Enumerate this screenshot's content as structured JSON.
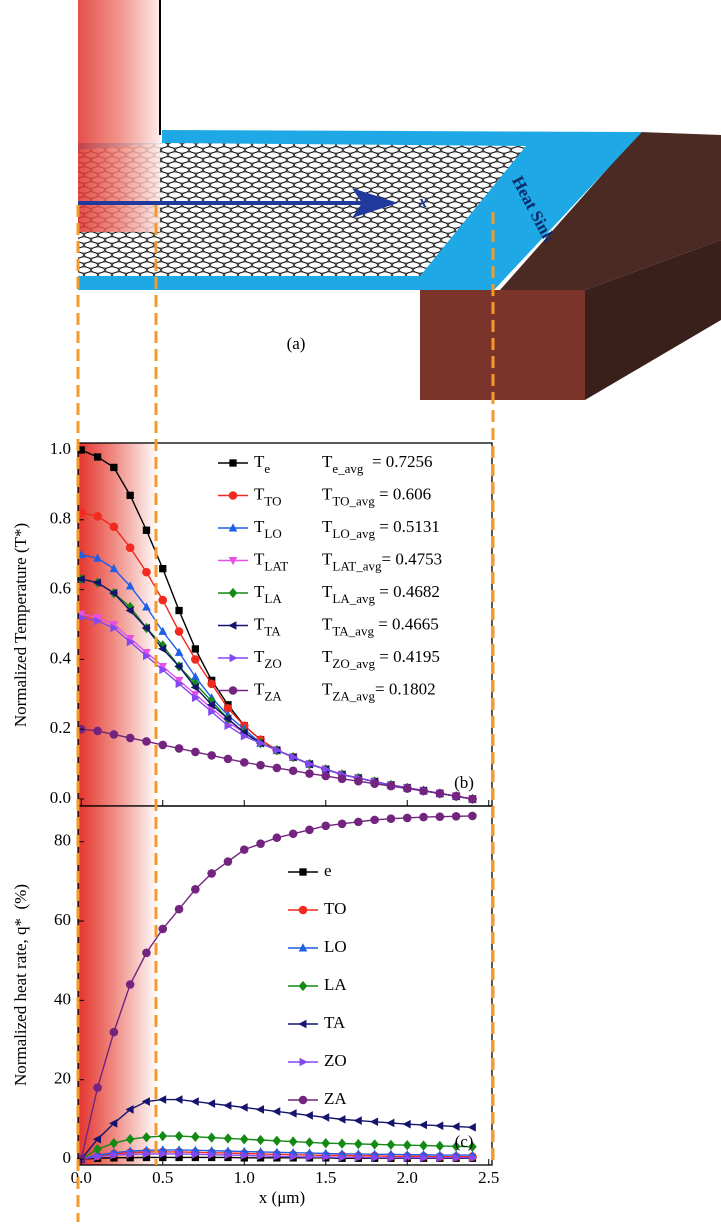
{
  "schematic": {
    "label": "(a)",
    "heat_sink": "Heat Sink",
    "axis": "x"
  },
  "chart_data": [
    {
      "type": "line",
      "ylabel": "Normalized Temperature (T*)",
      "panel_label": "(b)",
      "xlim": [
        -0.02,
        2.52
      ],
      "xticks": [
        0,
        0.5,
        1,
        1.5,
        2,
        2.5
      ],
      "ylim": [
        -0.02,
        1.02
      ],
      "yticks": [
        {
          "value": 0,
          "label": "0.0"
        },
        {
          "value": 0.2,
          "label": "0.2"
        },
        {
          "value": 0.4,
          "label": "0.4"
        },
        {
          "value": 0.6,
          "label": "0.6"
        },
        {
          "value": 0.8,
          "label": "0.8"
        },
        {
          "value": 1,
          "label": "1.0"
        }
      ],
      "x": [
        0,
        0.1,
        0.2,
        0.3,
        0.4,
        0.5,
        0.6,
        0.7,
        0.8,
        0.9,
        1.0,
        1.1,
        1.2,
        1.3,
        1.4,
        1.5,
        1.6,
        1.7,
        1.8,
        1.9,
        2.0,
        2.1,
        2.2,
        2.3,
        2.4
      ],
      "legend_subscript": true,
      "series": [
        {
          "name": "Te",
          "color": "#000000",
          "marker": "square",
          "values": [
            1.0,
            0.98,
            0.95,
            0.87,
            0.77,
            0.66,
            0.54,
            0.43,
            0.34,
            0.27,
            0.21,
            0.17,
            0.14,
            0.12,
            0.1,
            0.085,
            0.07,
            0.06,
            0.05,
            0.04,
            0.032,
            0.024,
            0.016,
            0.008,
            0
          ]
        },
        {
          "name": "TTO",
          "color": "#f02a1e",
          "marker": "circle",
          "values": [
            0.82,
            0.81,
            0.78,
            0.72,
            0.65,
            0.57,
            0.48,
            0.4,
            0.33,
            0.26,
            0.21,
            0.17,
            0.14,
            0.12,
            0.1,
            0.085,
            0.07,
            0.06,
            0.05,
            0.04,
            0.032,
            0.024,
            0.016,
            0.008,
            0
          ]
        },
        {
          "name": "TLO",
          "color": "#1f5ee6",
          "marker": "triangle-up",
          "values": [
            0.7,
            0.69,
            0.66,
            0.61,
            0.55,
            0.48,
            0.42,
            0.35,
            0.29,
            0.24,
            0.2,
            0.16,
            0.14,
            0.12,
            0.1,
            0.085,
            0.07,
            0.06,
            0.05,
            0.04,
            0.032,
            0.024,
            0.016,
            0.008,
            0
          ]
        },
        {
          "name": "TLAT",
          "color": "#e650e6",
          "marker": "triangle-down",
          "values": [
            0.53,
            0.52,
            0.5,
            0.46,
            0.42,
            0.38,
            0.34,
            0.3,
            0.26,
            0.22,
            0.19,
            0.16,
            0.14,
            0.12,
            0.1,
            0.085,
            0.07,
            0.06,
            0.05,
            0.04,
            0.032,
            0.024,
            0.016,
            0.008,
            0
          ]
        },
        {
          "name": "TLA",
          "color": "#138a13",
          "marker": "diamond",
          "values": [
            0.63,
            0.62,
            0.59,
            0.55,
            0.49,
            0.44,
            0.38,
            0.33,
            0.28,
            0.23,
            0.19,
            0.16,
            0.14,
            0.12,
            0.1,
            0.085,
            0.07,
            0.06,
            0.05,
            0.04,
            0.032,
            0.024,
            0.016,
            0.008,
            0
          ]
        },
        {
          "name": "TTA",
          "color": "#14146e",
          "marker": "triangle-left",
          "values": [
            0.63,
            0.62,
            0.59,
            0.54,
            0.49,
            0.43,
            0.38,
            0.32,
            0.27,
            0.23,
            0.19,
            0.16,
            0.14,
            0.12,
            0.1,
            0.085,
            0.07,
            0.06,
            0.05,
            0.04,
            0.032,
            0.024,
            0.016,
            0.008,
            0
          ]
        },
        {
          "name": "TZO",
          "color": "#8448f0",
          "marker": "triangle-right",
          "values": [
            0.52,
            0.51,
            0.49,
            0.45,
            0.41,
            0.37,
            0.33,
            0.29,
            0.25,
            0.21,
            0.18,
            0.16,
            0.14,
            0.12,
            0.1,
            0.085,
            0.07,
            0.06,
            0.05,
            0.04,
            0.032,
            0.024,
            0.016,
            0.008,
            0
          ]
        },
        {
          "name": "TZA",
          "color": "#72247e",
          "marker": "circle",
          "values": [
            0.2,
            0.195,
            0.185,
            0.175,
            0.165,
            0.155,
            0.145,
            0.135,
            0.125,
            0.115,
            0.105,
            0.097,
            0.089,
            0.081,
            0.073,
            0.066,
            0.058,
            0.051,
            0.044,
            0.037,
            0.03,
            0.023,
            0.016,
            0.008,
            0
          ]
        }
      ],
      "annotations": [
        "Te_avg  = 0.7256",
        "TTO_avg = 0.606",
        "TLO_avg = 0.5131",
        "TLAT_avg= 0.4753",
        "TLA_avg = 0.4682",
        "TTA_avg = 0.4665",
        "TZO_avg = 0.4195",
        "TZA_avg= 0.1802"
      ]
    },
    {
      "type": "line",
      "ylabel": "Normalized heat rate, q*  (%)",
      "xlabel": "x (μm)",
      "panel_label": "(c)",
      "xlim": [
        -0.02,
        2.52
      ],
      "xticks": [
        {
          "value": 0,
          "label": "0.0"
        },
        {
          "value": 0.5,
          "label": "0.5"
        },
        {
          "value": 1,
          "label": "1.0"
        },
        {
          "value": 1.5,
          "label": "1.5"
        },
        {
          "value": 2,
          "label": "2.0"
        },
        {
          "value": 2.5,
          "label": "2.5"
        }
      ],
      "ylim": [
        -1.5,
        89
      ],
      "yticks": [
        0,
        20,
        40,
        60,
        80
      ],
      "x": [
        0,
        0.1,
        0.2,
        0.3,
        0.4,
        0.5,
        0.6,
        0.7,
        0.8,
        0.9,
        1.0,
        1.1,
        1.2,
        1.3,
        1.4,
        1.5,
        1.6,
        1.7,
        1.8,
        1.9,
        2.0,
        2.1,
        2.2,
        2.3,
        2.4
      ],
      "legend_subscript": false,
      "series": [
        {
          "name": "e",
          "color": "#000000",
          "marker": "square",
          "values": [
            0,
            0.2,
            0.3,
            0.35,
            0.4,
            0.4,
            0.4,
            0.4,
            0.4,
            0.4,
            0.3,
            0.3,
            0.3,
            0.3,
            0.3,
            0.3,
            0.2,
            0.2,
            0.2,
            0.2,
            0.2,
            0.2,
            0.2,
            0.2,
            0.2
          ]
        },
        {
          "name": "TO",
          "color": "#f02a1e",
          "marker": "circle",
          "values": [
            0,
            0.8,
            1.3,
            1.6,
            1.8,
            1.8,
            1.8,
            1.7,
            1.6,
            1.5,
            1.4,
            1.3,
            1.2,
            1.1,
            1.0,
            0.9,
            0.9,
            0.8,
            0.8,
            0.7,
            0.7,
            0.7,
            0.6,
            0.6,
            0.6
          ]
        },
        {
          "name": "LO",
          "color": "#1f5ee6",
          "marker": "triangle-up",
          "values": [
            0,
            1,
            1.6,
            2,
            2.2,
            2.3,
            2.3,
            2.2,
            2.1,
            2.0,
            1.9,
            1.8,
            1.7,
            1.6,
            1.5,
            1.4,
            1.3,
            1.3,
            1.2,
            1.2,
            1.1,
            1.1,
            1.0,
            1.0,
            1.0
          ]
        },
        {
          "name": "LA",
          "color": "#138a13",
          "marker": "diamond",
          "values": [
            0,
            2.5,
            4,
            5,
            5.5,
            5.8,
            5.8,
            5.6,
            5.4,
            5.2,
            5.0,
            4.8,
            4.6,
            4.4,
            4.2,
            4.0,
            3.9,
            3.8,
            3.7,
            3.6,
            3.5,
            3.4,
            3.3,
            3.2,
            3.1
          ]
        },
        {
          "name": "TA",
          "color": "#14146e",
          "marker": "triangle-left",
          "values": [
            0,
            5,
            9,
            12.5,
            14.5,
            15,
            15,
            14.5,
            14,
            13.5,
            13,
            12.5,
            12,
            11.5,
            11,
            10.5,
            10,
            9.7,
            9.4,
            9.1,
            8.8,
            8.6,
            8.4,
            8.2,
            8.0
          ]
        },
        {
          "name": "ZO",
          "color": "#8448f0",
          "marker": "triangle-right",
          "values": [
            0,
            0.6,
            1.0,
            1.2,
            1.3,
            1.3,
            1.3,
            1.2,
            1.1,
            1.0,
            0.9,
            0.8,
            0.7,
            0.6,
            0.5,
            0.5,
            0.4,
            0.4,
            0.3,
            0.3,
            0.3,
            0.3,
            0.3,
            0.3,
            0.3
          ]
        },
        {
          "name": "ZA",
          "color": "#72247e",
          "marker": "circle",
          "values": [
            0,
            18,
            32,
            44,
            52,
            58,
            63,
            68,
            72,
            75,
            78,
            79.5,
            81,
            82,
            83,
            84,
            84.5,
            85,
            85.5,
            85.8,
            86,
            86.2,
            86.3,
            86.4,
            86.5
          ]
        }
      ]
    }
  ]
}
